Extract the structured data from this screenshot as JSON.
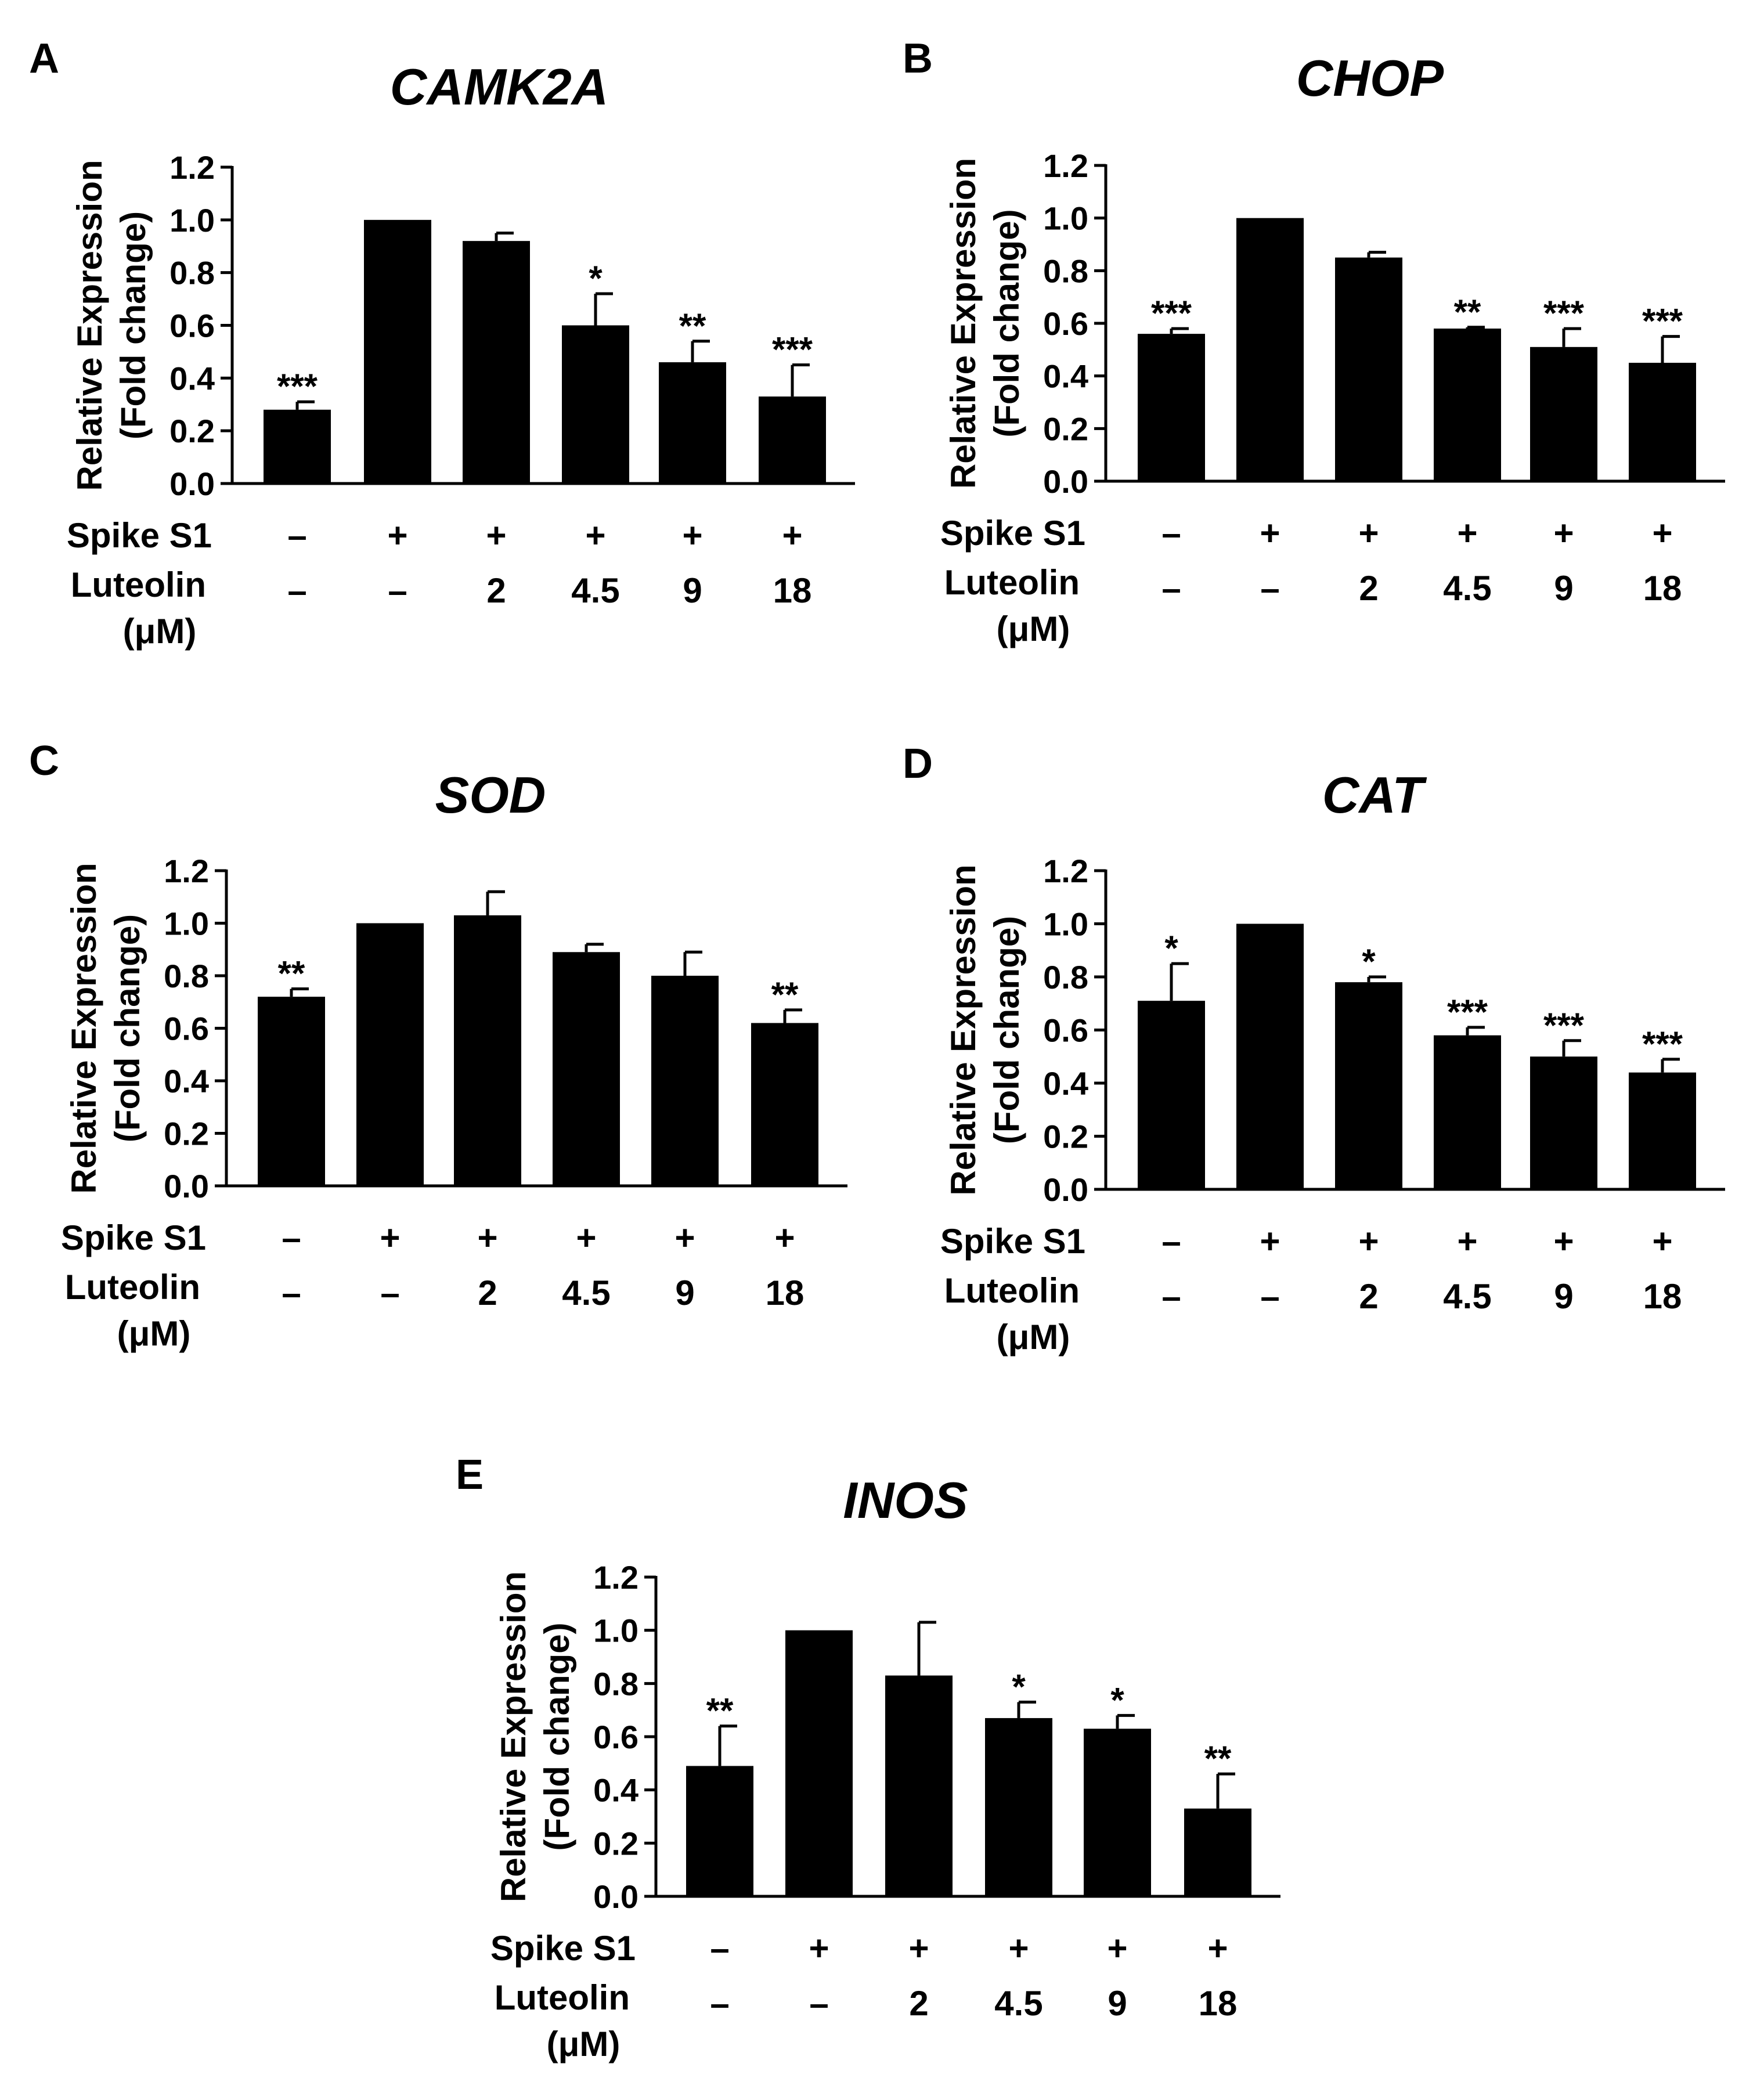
{
  "chart_data": [
    {
      "type": "bar",
      "panel_label": "A",
      "title": "CAMK2A",
      "ylabel_line1": "Relative Expression",
      "ylabel_line2": "(Fold change)",
      "ylim": [
        0,
        1.2
      ],
      "yticks": [
        "0.0",
        "0.2",
        "0.4",
        "0.6",
        "0.8",
        "1.0",
        "1.2"
      ],
      "values": [
        0.28,
        1.0,
        0.92,
        0.6,
        0.46,
        0.33
      ],
      "errors": [
        0.03,
        0.0,
        0.03,
        0.12,
        0.08,
        0.12
      ],
      "significance": [
        "***",
        "",
        "",
        "*",
        "**",
        "***"
      ],
      "spike_label": "Spike S1",
      "spike_row": [
        "–",
        "+",
        "+",
        "+",
        "+",
        "+"
      ],
      "luteolin_label": "Luteolin",
      "unit_label": "(μM)",
      "luteolin_row": [
        "–",
        "–",
        "2",
        "4.5",
        "9",
        "18"
      ]
    },
    {
      "type": "bar",
      "panel_label": "B",
      "title": "CHOP",
      "ylabel_line1": "Relative Expression",
      "ylabel_line2": "(Fold change)",
      "ylim": [
        0,
        1.2
      ],
      "yticks": [
        "0.0",
        "0.2",
        "0.4",
        "0.6",
        "0.8",
        "1.0",
        "1.2"
      ],
      "values": [
        0.56,
        1.0,
        0.85,
        0.58,
        0.51,
        0.45
      ],
      "errors": [
        0.02,
        0.0,
        0.02,
        0.005,
        0.07,
        0.1
      ],
      "significance": [
        "***",
        "",
        "",
        "**",
        "***",
        "***"
      ],
      "spike_label": "Spike S1",
      "spike_row": [
        "–",
        "+",
        "+",
        "+",
        "+",
        "+"
      ],
      "luteolin_label": "Luteolin",
      "unit_label": "(μM)",
      "luteolin_row": [
        "–",
        "–",
        "2",
        "4.5",
        "9",
        "18"
      ]
    },
    {
      "type": "bar",
      "panel_label": "C",
      "title": "SOD",
      "ylabel_line1": "Relative Expression",
      "ylabel_line2": "(Fold change)",
      "ylim": [
        0,
        1.2
      ],
      "yticks": [
        "0.0",
        "0.2",
        "0.4",
        "0.6",
        "0.8",
        "1.0",
        "1.2"
      ],
      "values": [
        0.72,
        1.0,
        1.03,
        0.89,
        0.8,
        0.62
      ],
      "errors": [
        0.03,
        0.0,
        0.09,
        0.03,
        0.09,
        0.05
      ],
      "significance": [
        "**",
        "",
        "",
        "",
        "",
        "**"
      ],
      "spike_label": "Spike S1",
      "spike_row": [
        "–",
        "+",
        "+",
        "+",
        "+",
        "+"
      ],
      "luteolin_label": "Luteolin",
      "unit_label": "(μM)",
      "luteolin_row": [
        "–",
        "–",
        "2",
        "4.5",
        "9",
        "18"
      ]
    },
    {
      "type": "bar",
      "panel_label": "D",
      "title": "CAT",
      "ylabel_line1": "Relative Expression",
      "ylabel_line2": "(Fold change)",
      "ylim": [
        0,
        1.2
      ],
      "yticks": [
        "0.0",
        "0.2",
        "0.4",
        "0.6",
        "0.8",
        "1.0",
        "1.2"
      ],
      "values": [
        0.71,
        1.0,
        0.78,
        0.58,
        0.5,
        0.44
      ],
      "errors": [
        0.14,
        0.0,
        0.02,
        0.03,
        0.06,
        0.05
      ],
      "significance": [
        "*",
        "",
        "*",
        "***",
        "***",
        "***"
      ],
      "spike_label": "Spike S1",
      "spike_row": [
        "–",
        "+",
        "+",
        "+",
        "+",
        "+"
      ],
      "luteolin_label": "Luteolin",
      "unit_label": "(μM)",
      "luteolin_row": [
        "–",
        "–",
        "2",
        "4.5",
        "9",
        "18"
      ]
    },
    {
      "type": "bar",
      "panel_label": "E",
      "title": "INOS",
      "ylabel_line1": "Relative Expression",
      "ylabel_line2": "(Fold change)",
      "ylim": [
        0,
        1.2
      ],
      "yticks": [
        "0.0",
        "0.2",
        "0.4",
        "0.6",
        "0.8",
        "1.0",
        "1.2"
      ],
      "values": [
        0.49,
        1.0,
        0.83,
        0.67,
        0.63,
        0.33
      ],
      "errors": [
        0.15,
        0.0,
        0.2,
        0.06,
        0.05,
        0.13
      ],
      "significance": [
        "**",
        "",
        "",
        "*",
        "*",
        "**"
      ],
      "spike_label": "Spike S1",
      "spike_row": [
        "–",
        "+",
        "+",
        "+",
        "+",
        "+"
      ],
      "luteolin_label": "Luteolin",
      "unit_label": "(μM)",
      "luteolin_row": [
        "–",
        "–",
        "2",
        "4.5",
        "9",
        "18"
      ]
    }
  ]
}
